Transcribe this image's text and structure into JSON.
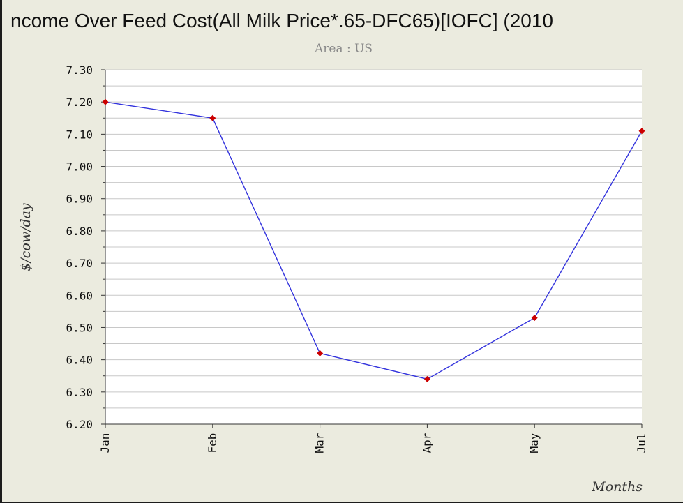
{
  "chart_data": {
    "type": "line",
    "title": "ncome Over Feed Cost(All Milk Price*.65-DFC65)[IOFC] (2010",
    "subtitle": "Area : US",
    "xlabel": "Months",
    "ylabel": "$/cow/day",
    "categories": [
      "Jan",
      "Feb",
      "Mar",
      "Apr",
      "May",
      "Jul"
    ],
    "series": [
      {
        "values": [
          7.2,
          7.15,
          6.42,
          6.34,
          6.53,
          7.11
        ]
      }
    ],
    "ylim": [
      6.2,
      7.3
    ],
    "yticks": [
      "6.20",
      "6.30",
      "6.40",
      "6.50",
      "6.60",
      "6.70",
      "6.80",
      "6.90",
      "7.00",
      "7.10",
      "7.20",
      "7.30"
    ],
    "grid": true,
    "line_color": "#3333dd",
    "marker_color": "#cc0000",
    "background_color": "#ebebdf",
    "plot_background": "#ffffff"
  }
}
